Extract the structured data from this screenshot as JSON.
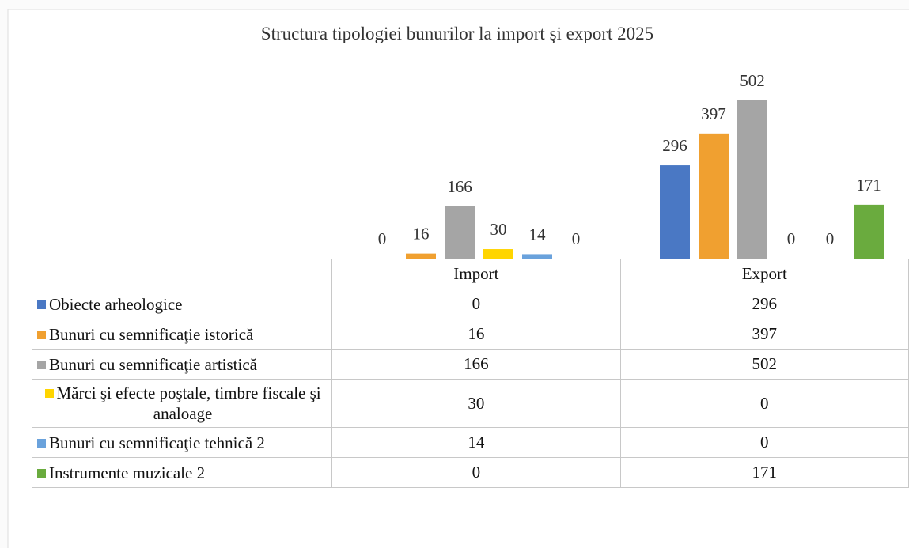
{
  "chart_data": {
    "type": "bar",
    "title": "Structura tipologiei bunurilor la import şi export 2025",
    "categories": [
      "Import",
      "Export"
    ],
    "series": [
      {
        "name": "Obiecte arheologice",
        "color": "#4a78c4",
        "values": [
          0,
          296
        ]
      },
      {
        "name": "Bunuri cu semnificaţie istorică",
        "color": "#f0a030",
        "values": [
          16,
          397
        ]
      },
      {
        "name": "Bunuri cu semnificaţie artistică",
        "color": "#a5a5a5",
        "values": [
          166,
          502
        ]
      },
      {
        "name": "Mărci şi efecte poştale, timbre fiscale şi analoage",
        "color": "#ffd500",
        "values": [
          30,
          0
        ]
      },
      {
        "name": "Bunuri cu semnificaţie tehnică 2",
        "color": "#6aa2dc",
        "values": [
          14,
          0
        ]
      },
      {
        "name": "Instrumente muzicale 2",
        "color": "#6aab3e",
        "values": [
          0,
          171
        ]
      }
    ]
  }
}
